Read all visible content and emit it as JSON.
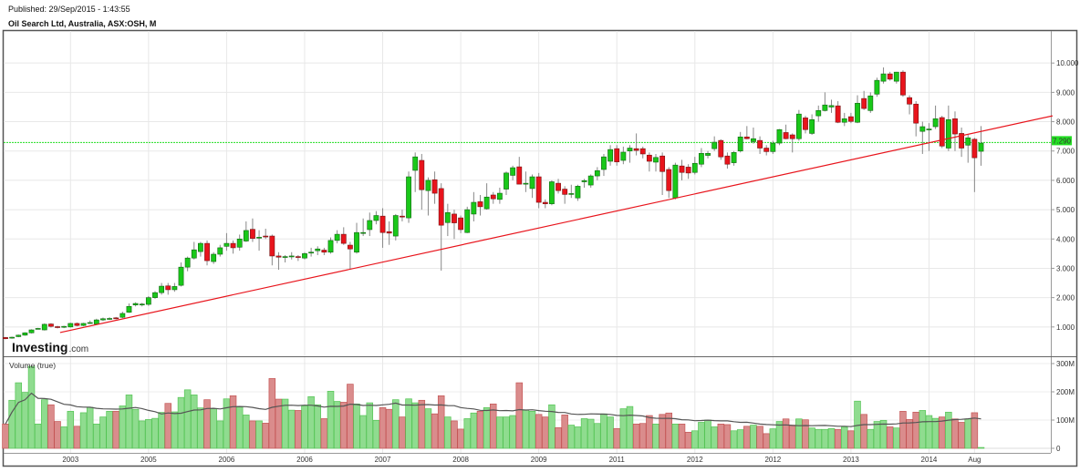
{
  "header": {
    "published": "Published: 29/Sep/2015 - 1:43:55",
    "title": "Oil Search Ltd, Australia, ASX:OSH, M"
  },
  "logo": {
    "text": "Investing",
    "suffix": ".com"
  },
  "colors": {
    "up": "#19c819",
    "down": "#e8141c",
    "trendline": "#e8141c",
    "price_line": "#22dd22",
    "vol_up": "#8fdc8f",
    "vol_down": "#da8c8c"
  },
  "chart_data": [
    {
      "type": "candlestick",
      "interval": "monthly",
      "ylim": [
        0,
        11
      ],
      "y_ticks": [
        "1.000",
        "2.000",
        "3.000",
        "4.000",
        "5.000",
        "6.000",
        "7.000",
        "8.000",
        "9.000",
        "10.000"
      ],
      "x_ticks": [
        {
          "label": "2003",
          "candle": 10
        },
        {
          "label": "2005",
          "candle": 22
        },
        {
          "label": "2006",
          "candle": 34
        },
        {
          "label": "2006",
          "candle": 46
        },
        {
          "label": "2007",
          "candle": 58
        },
        {
          "label": "2008",
          "candle": 70
        },
        {
          "label": "2009",
          "candle": 82
        },
        {
          "label": "2011",
          "candle": 94
        },
        {
          "label": "2012",
          "candle": 106
        },
        {
          "label": "2012",
          "candle": 118
        },
        {
          "label": "2013",
          "candle": 130
        },
        {
          "label": "2014",
          "candle": 142
        },
        {
          "label": "Aug",
          "candle": 149
        }
      ],
      "grid": true,
      "current_price": {
        "value": 7.29,
        "label": "7.290"
      },
      "trendline": {
        "from": {
          "candle": 8.4,
          "price": 0.81
        },
        "to": {
          "candle": 161,
          "price": 8.2
        }
      },
      "ohlc": [
        [
          0.64,
          0.66,
          0.58,
          0.6
        ],
        [
          0.64,
          0.67,
          0.6,
          0.65
        ],
        [
          0.67,
          0.74,
          0.65,
          0.72
        ],
        [
          0.72,
          0.82,
          0.7,
          0.8
        ],
        [
          0.8,
          0.92,
          0.78,
          0.9
        ],
        [
          0.94,
          0.97,
          0.92,
          0.95
        ],
        [
          0.9,
          1.12,
          0.88,
          1.09
        ],
        [
          1.1,
          1.13,
          0.98,
          1.02
        ],
        [
          1.01,
          1.04,
          0.95,
          1.0
        ],
        [
          0.99,
          1.04,
          0.96,
          1.02
        ],
        [
          1.0,
          1.14,
          0.98,
          1.12
        ],
        [
          1.12,
          1.15,
          1.02,
          1.05
        ],
        [
          1.05,
          1.14,
          1.03,
          1.12
        ],
        [
          1.14,
          1.22,
          1.1,
          1.15
        ],
        [
          1.1,
          1.28,
          1.08,
          1.24
        ],
        [
          1.24,
          1.32,
          1.2,
          1.28
        ],
        [
          1.28,
          1.33,
          1.24,
          1.29
        ],
        [
          1.31,
          1.34,
          1.26,
          1.29
        ],
        [
          1.33,
          1.52,
          1.3,
          1.46
        ],
        [
          1.5,
          1.8,
          1.48,
          1.7
        ],
        [
          1.75,
          1.84,
          1.7,
          1.8
        ],
        [
          1.78,
          1.82,
          1.7,
          1.78
        ],
        [
          1.77,
          2.05,
          1.72,
          2.0
        ],
        [
          2.0,
          2.22,
          1.96,
          2.17
        ],
        [
          2.17,
          2.5,
          2.1,
          2.39
        ],
        [
          2.4,
          2.5,
          2.1,
          2.27
        ],
        [
          2.27,
          2.5,
          2.2,
          2.38
        ],
        [
          2.42,
          3.2,
          2.38,
          3.04
        ],
        [
          3.04,
          3.4,
          2.9,
          3.35
        ],
        [
          3.35,
          3.9,
          3.3,
          3.63
        ],
        [
          3.57,
          3.9,
          3.4,
          3.85
        ],
        [
          3.85,
          3.95,
          3.1,
          3.26
        ],
        [
          3.23,
          3.55,
          3.15,
          3.48
        ],
        [
          3.48,
          3.8,
          3.4,
          3.7
        ],
        [
          3.75,
          4.2,
          3.6,
          3.85
        ],
        [
          3.85,
          3.95,
          3.5,
          3.7
        ],
        [
          3.72,
          4.15,
          3.6,
          4.0
        ],
        [
          3.93,
          4.6,
          3.9,
          4.29
        ],
        [
          4.33,
          4.7,
          3.9,
          4.02
        ],
        [
          4.06,
          4.3,
          3.6,
          4.06
        ],
        [
          4.1,
          4.35,
          4.0,
          4.07
        ],
        [
          4.1,
          4.15,
          3.1,
          3.42
        ],
        [
          3.42,
          3.55,
          2.95,
          3.38
        ],
        [
          3.4,
          3.45,
          3.2,
          3.4
        ],
        [
          3.42,
          3.55,
          3.3,
          3.42
        ],
        [
          3.4,
          3.45,
          3.25,
          3.38
        ],
        [
          3.35,
          3.55,
          3.3,
          3.5
        ],
        [
          3.54,
          3.7,
          3.4,
          3.55
        ],
        [
          3.6,
          3.75,
          3.45,
          3.66
        ],
        [
          3.62,
          3.7,
          3.45,
          3.55
        ],
        [
          3.55,
          4.05,
          3.5,
          3.95
        ],
        [
          3.95,
          4.3,
          3.85,
          4.16
        ],
        [
          4.16,
          4.4,
          3.8,
          3.85
        ],
        [
          3.79,
          3.9,
          2.95,
          3.66
        ],
        [
          3.55,
          4.55,
          3.5,
          4.22
        ],
        [
          4.22,
          4.7,
          4.1,
          4.22
        ],
        [
          4.32,
          4.9,
          4.1,
          4.63
        ],
        [
          4.63,
          4.95,
          4.5,
          4.8
        ],
        [
          4.78,
          5.05,
          3.7,
          4.22
        ],
        [
          4.25,
          4.6,
          3.8,
          4.2
        ],
        [
          4.1,
          4.85,
          3.95,
          4.8
        ],
        [
          4.78,
          5.0,
          4.6,
          4.75
        ],
        [
          4.72,
          6.3,
          4.55,
          6.12
        ],
        [
          6.34,
          6.95,
          5.6,
          6.8
        ],
        [
          6.68,
          6.9,
          5.0,
          5.68
        ],
        [
          5.65,
          6.1,
          4.8,
          6.0
        ],
        [
          6.02,
          6.3,
          5.2,
          5.56
        ],
        [
          5.72,
          5.9,
          2.92,
          4.47
        ],
        [
          4.56,
          5.2,
          4.1,
          4.9
        ],
        [
          4.85,
          5.0,
          4.0,
          4.55
        ],
        [
          4.72,
          4.8,
          4.2,
          4.32
        ],
        [
          4.22,
          5.1,
          4.2,
          5.0
        ],
        [
          4.85,
          5.6,
          4.6,
          5.25
        ],
        [
          5.27,
          5.5,
          4.8,
          5.1
        ],
        [
          5.03,
          5.9,
          5.0,
          5.43
        ],
        [
          5.5,
          5.6,
          5.2,
          5.37
        ],
        [
          5.35,
          5.75,
          5.2,
          5.56
        ],
        [
          5.7,
          6.3,
          5.5,
          6.25
        ],
        [
          6.17,
          6.5,
          6.0,
          6.43
        ],
        [
          6.46,
          6.8,
          5.9,
          5.87
        ],
        [
          5.87,
          6.3,
          5.6,
          5.9
        ],
        [
          5.72,
          6.2,
          5.4,
          6.12
        ],
        [
          6.12,
          6.25,
          5.05,
          5.25
        ],
        [
          5.25,
          5.35,
          5.05,
          5.2
        ],
        [
          5.2,
          6.0,
          5.15,
          5.95
        ],
        [
          5.9,
          6.05,
          5.55,
          5.65
        ],
        [
          5.7,
          5.8,
          5.2,
          5.52
        ],
        [
          5.55,
          5.85,
          5.4,
          5.55
        ],
        [
          5.4,
          5.85,
          5.3,
          5.8
        ],
        [
          5.95,
          6.05,
          5.75,
          5.99
        ],
        [
          5.84,
          6.2,
          5.75,
          6.15
        ],
        [
          6.15,
          6.45,
          6.0,
          6.33
        ],
        [
          6.37,
          6.9,
          6.15,
          6.8
        ],
        [
          6.65,
          7.2,
          6.5,
          7.05
        ],
        [
          7.08,
          7.2,
          6.5,
          6.63
        ],
        [
          6.68,
          7.15,
          6.55,
          6.96
        ],
        [
          7.0,
          7.2,
          6.6,
          7.1
        ],
        [
          7.08,
          7.6,
          6.85,
          7.02
        ],
        [
          7.08,
          7.15,
          6.75,
          6.9
        ],
        [
          6.86,
          6.95,
          6.3,
          6.65
        ],
        [
          6.62,
          6.9,
          6.3,
          6.78
        ],
        [
          6.83,
          6.95,
          5.5,
          6.3
        ],
        [
          6.37,
          6.45,
          5.4,
          5.65
        ],
        [
          5.4,
          6.6,
          5.35,
          6.52
        ],
        [
          6.49,
          6.7,
          6.0,
          6.27
        ],
        [
          6.45,
          6.55,
          6.05,
          6.25
        ],
        [
          6.27,
          6.8,
          6.2,
          6.58
        ],
        [
          6.55,
          7.1,
          6.45,
          6.92
        ],
        [
          6.85,
          7.0,
          6.75,
          6.92
        ],
        [
          7.08,
          7.5,
          7.0,
          7.3
        ],
        [
          7.36,
          7.4,
          6.7,
          6.8
        ],
        [
          6.83,
          6.95,
          6.4,
          6.55
        ],
        [
          6.6,
          7.0,
          6.5,
          6.95
        ],
        [
          7.0,
          7.65,
          6.95,
          7.48
        ],
        [
          7.48,
          7.85,
          7.4,
          7.42
        ],
        [
          7.32,
          7.8,
          7.25,
          7.42
        ],
        [
          7.36,
          7.5,
          6.9,
          7.1
        ],
        [
          7.1,
          7.2,
          6.85,
          6.98
        ],
        [
          6.98,
          7.35,
          6.9,
          7.27
        ],
        [
          7.27,
          7.75,
          7.2,
          7.73
        ],
        [
          7.63,
          7.9,
          7.4,
          7.42
        ],
        [
          7.55,
          7.6,
          6.95,
          7.42
        ],
        [
          7.42,
          8.4,
          7.35,
          8.26
        ],
        [
          8.13,
          8.2,
          7.6,
          7.73
        ],
        [
          7.6,
          8.25,
          7.55,
          8.07
        ],
        [
          8.2,
          8.55,
          8.0,
          8.38
        ],
        [
          8.38,
          9.0,
          8.35,
          8.57
        ],
        [
          8.5,
          8.75,
          8.3,
          8.55
        ],
        [
          8.54,
          8.7,
          7.95,
          7.98
        ],
        [
          7.98,
          8.3,
          7.85,
          8.1
        ],
        [
          8.17,
          8.3,
          7.95,
          8.01
        ],
        [
          7.98,
          8.9,
          7.95,
          8.63
        ],
        [
          8.79,
          9.05,
          8.4,
          8.45
        ],
        [
          8.38,
          9.0,
          8.3,
          8.88
        ],
        [
          8.94,
          9.5,
          8.85,
          9.41
        ],
        [
          9.38,
          9.85,
          9.3,
          9.63
        ],
        [
          9.63,
          9.7,
          9.4,
          9.45
        ],
        [
          9.38,
          9.7,
          9.3,
          9.69
        ],
        [
          9.69,
          9.75,
          8.85,
          8.91
        ],
        [
          8.82,
          8.9,
          8.25,
          8.6
        ],
        [
          8.6,
          8.7,
          7.5,
          7.95
        ],
        [
          7.67,
          8.0,
          6.9,
          7.83
        ],
        [
          7.75,
          7.95,
          7.0,
          7.75
        ],
        [
          7.83,
          8.55,
          7.75,
          8.1
        ],
        [
          8.14,
          8.2,
          7.1,
          7.17
        ],
        [
          7.1,
          8.55,
          7.0,
          8.07
        ],
        [
          8.1,
          8.35,
          7.0,
          7.58
        ],
        [
          7.6,
          7.8,
          6.8,
          7.1
        ],
        [
          7.2,
          7.55,
          6.6,
          7.45
        ],
        [
          7.4,
          7.45,
          5.6,
          6.77
        ],
        [
          6.99,
          7.85,
          6.5,
          7.27
        ]
      ]
    },
    {
      "type": "bar",
      "title": "Volume (true)",
      "ylim": [
        0,
        320
      ],
      "y_ticks": [
        "0",
        "100M",
        "200M",
        "300M"
      ],
      "moving_average": true,
      "values_millions": [
        86,
        170,
        232,
        198,
        290,
        86,
        172,
        154,
        95,
        76,
        131,
        78,
        126,
        145,
        86,
        111,
        131,
        131,
        150,
        189,
        138,
        97,
        102,
        106,
        127,
        159,
        129,
        180,
        207,
        189,
        143,
        172,
        140,
        97,
        175,
        186,
        146,
        118,
        97,
        97,
        89,
        247,
        174,
        174,
        135,
        134,
        150,
        183,
        154,
        105,
        202,
        166,
        163,
        227,
        157,
        116,
        161,
        99,
        144,
        138,
        172,
        111,
        175,
        161,
        170,
        140,
        122,
        186,
        111,
        97,
        68,
        105,
        125,
        131,
        144,
        157,
        111,
        111,
        116,
        232,
        135,
        131,
        120,
        111,
        154,
        73,
        118,
        82,
        76,
        105,
        103,
        88,
        122,
        111,
        70,
        140,
        148,
        86,
        88,
        116,
        86,
        120,
        125,
        86,
        86,
        57,
        62,
        92,
        100,
        76,
        86,
        84,
        62,
        66,
        78,
        82,
        78,
        52,
        69,
        95,
        104,
        82,
        104,
        101,
        72,
        67,
        67,
        70,
        67,
        75,
        62,
        167,
        120,
        67,
        95,
        99,
        76,
        72,
        131,
        102,
        128,
        134,
        116,
        106,
        111,
        128,
        104,
        92,
        104,
        126,
        3
      ]
    }
  ]
}
